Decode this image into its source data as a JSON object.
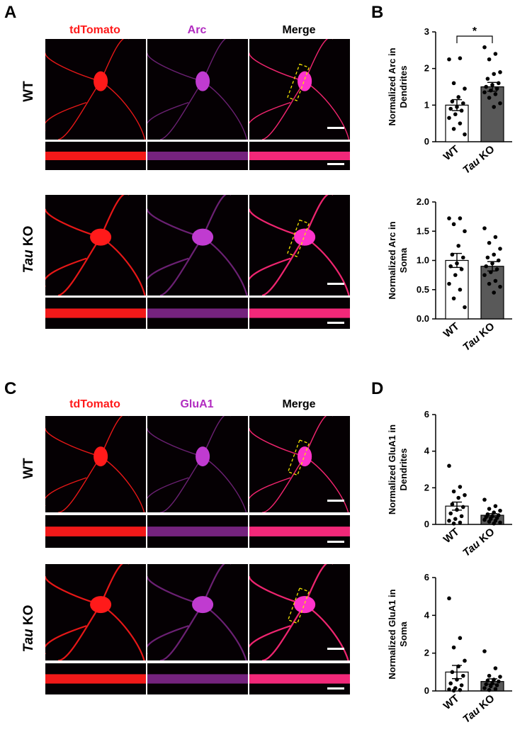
{
  "panels": {
    "A": {
      "letter": "A",
      "columns": [
        "tdTomato",
        "Arc",
        "Merge"
      ],
      "rows": [
        {
          "italic": "",
          "rest": "WT"
        },
        {
          "italic": "Tau",
          "rest": " KO"
        }
      ]
    },
    "B": {
      "letter": "B"
    },
    "C": {
      "letter": "C",
      "columns": [
        "tdTomato",
        "GluA1",
        "Merge"
      ],
      "rows": [
        {
          "italic": "",
          "rest": "WT"
        },
        {
          "italic": "Tau",
          "rest": " KO"
        }
      ]
    },
    "D": {
      "letter": "D"
    }
  },
  "colors": {
    "red_channel": "#ff1a1a",
    "magenta_channel": "#c03bd0",
    "wt_bar": "#ffffff",
    "ko_bar": "#595959"
  },
  "chart_data": [
    {
      "id": "B-dendrites",
      "type": "bar",
      "ylabel_lines": [
        "Normalized Arc in",
        "Dendrites"
      ],
      "categories": [
        {
          "italic": "",
          "rest": "WT"
        },
        {
          "italic": "Tau",
          "rest": " KO"
        }
      ],
      "means": [
        1.0,
        1.5
      ],
      "sem": [
        0.15,
        0.12
      ],
      "ylim": [
        0,
        3
      ],
      "yticks": [
        "0",
        "1",
        "2",
        "3"
      ],
      "significance": "*",
      "points": [
        [
          2.25,
          2.28,
          1.6,
          1.45,
          1.22,
          1.1,
          1.05,
          0.95,
          0.9,
          0.85,
          0.75,
          0.65,
          0.5,
          0.35,
          0.2
        ],
        [
          2.58,
          2.4,
          2.25,
          1.9,
          1.85,
          1.72,
          1.6,
          1.55,
          1.5,
          1.45,
          1.4,
          1.35,
          1.3,
          1.2,
          1.05,
          0.95
        ]
      ]
    },
    {
      "id": "B-soma",
      "type": "bar",
      "ylabel_lines": [
        "Normalized Arc in",
        "Soma"
      ],
      "categories": [
        {
          "italic": "",
          "rest": "WT"
        },
        {
          "italic": "Tau",
          "rest": " KO"
        }
      ],
      "means": [
        1.0,
        0.9
      ],
      "sem": [
        0.12,
        0.08
      ],
      "ylim": [
        0,
        2
      ],
      "yticks": [
        "0.0",
        "0.5",
        "1.0",
        "1.5",
        "2.0"
      ],
      "significance": "",
      "points": [
        [
          1.72,
          1.72,
          1.62,
          1.5,
          1.25,
          1.1,
          1.05,
          0.95,
          0.9,
          0.85,
          0.75,
          0.6,
          0.5,
          0.35,
          0.2
        ],
        [
          1.55,
          1.4,
          1.3,
          1.2,
          1.1,
          1.05,
          1.0,
          0.95,
          0.9,
          0.85,
          0.8,
          0.75,
          0.65,
          0.6,
          0.55,
          0.45
        ]
      ]
    },
    {
      "id": "D-dendrites",
      "type": "bar",
      "ylabel_lines": [
        "Normalized GluA1 in",
        "Dendrites"
      ],
      "categories": [
        {
          "italic": "",
          "rest": "WT"
        },
        {
          "italic": "Tau",
          "rest": " KO"
        }
      ],
      "means": [
        1.0,
        0.5
      ],
      "sem": [
        0.22,
        0.09
      ],
      "ylim": [
        0,
        6
      ],
      "yticks": [
        "0",
        "2",
        "4",
        "6"
      ],
      "significance": "",
      "points": [
        [
          3.2,
          2.05,
          1.8,
          1.6,
          1.45,
          1.1,
          0.95,
          0.8,
          0.6,
          0.45,
          0.3,
          0.2,
          0.1,
          0.05
        ],
        [
          1.35,
          1.0,
          0.85,
          0.75,
          0.65,
          0.55,
          0.5,
          0.45,
          0.4,
          0.35,
          0.3,
          0.25,
          0.2,
          0.15,
          0.1,
          0.05
        ]
      ]
    },
    {
      "id": "D-soma",
      "type": "bar",
      "ylabel_lines": [
        "Normalized GluA1 in",
        "Soma"
      ],
      "categories": [
        {
          "italic": "",
          "rest": "WT"
        },
        {
          "italic": "Tau",
          "rest": " KO"
        }
      ],
      "means": [
        1.0,
        0.5
      ],
      "sem": [
        0.35,
        0.14
      ],
      "ylim": [
        0,
        6
      ],
      "yticks": [
        "0",
        "2",
        "4",
        "6"
      ],
      "significance": "",
      "points": [
        [
          4.9,
          2.8,
          2.3,
          1.6,
          1.3,
          1.0,
          0.8,
          0.6,
          0.4,
          0.3,
          0.15,
          0.08,
          0.05,
          0.02
        ],
        [
          2.1,
          1.2,
          0.8,
          0.75,
          0.6,
          0.55,
          0.5,
          0.4,
          0.35,
          0.3,
          0.25,
          0.15,
          0.1,
          0.05
        ]
      ]
    }
  ]
}
